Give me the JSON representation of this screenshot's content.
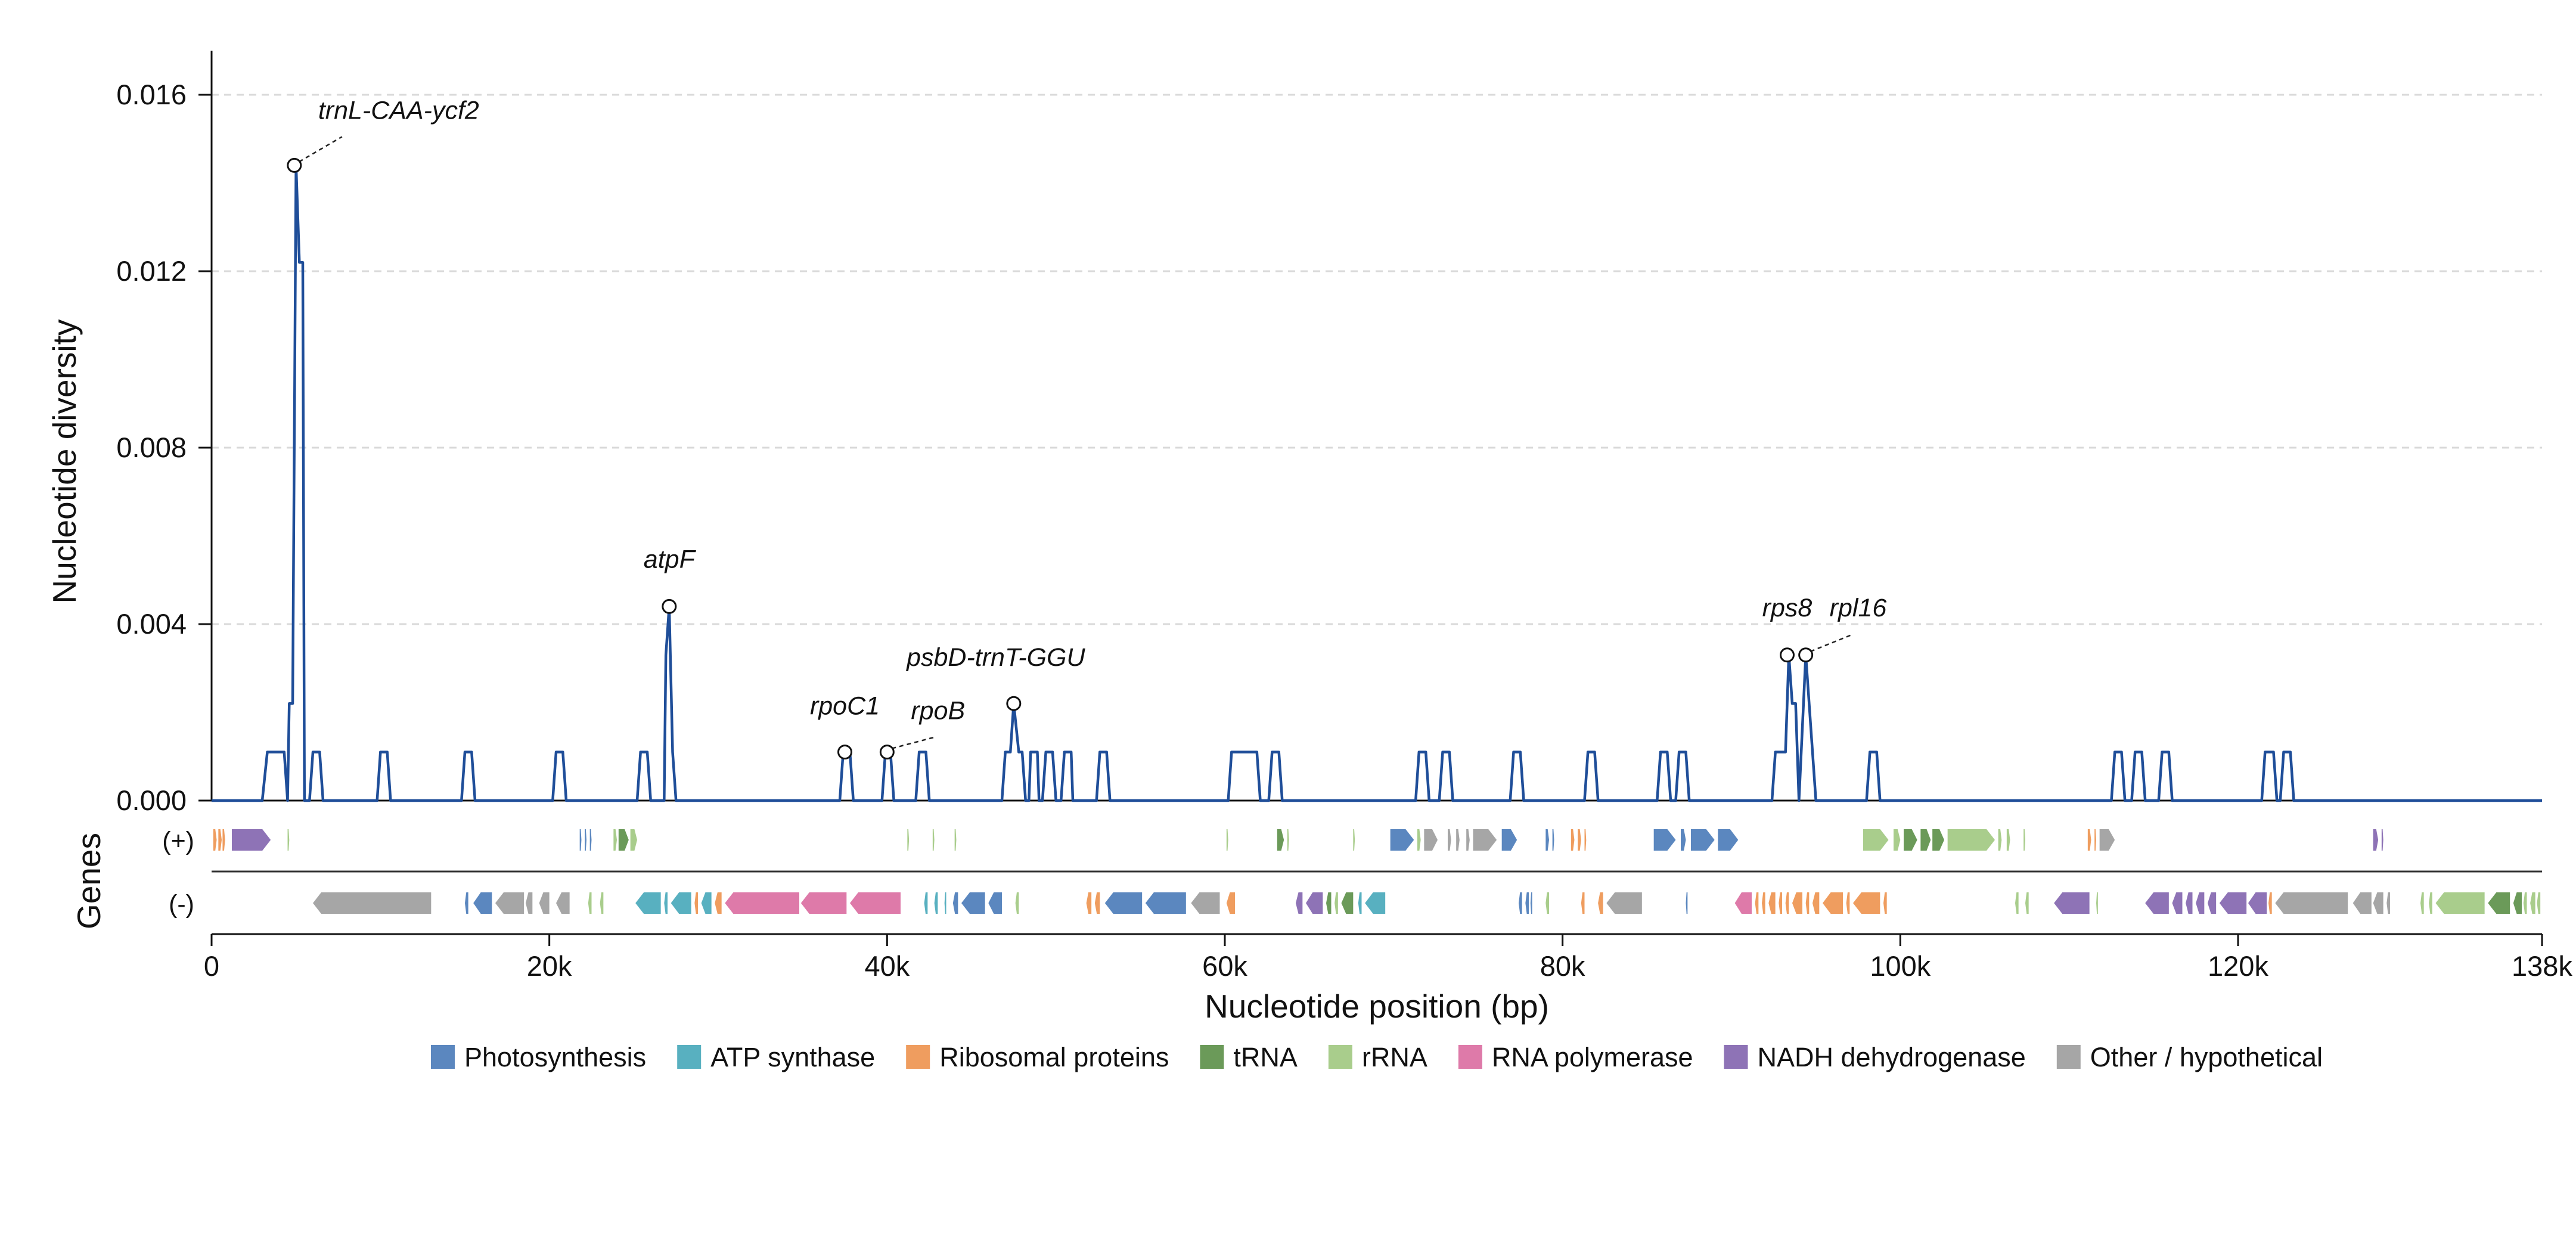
{
  "chart_data": {
    "type": "line",
    "title": "",
    "xlabel": "Nucleotide position (bp)",
    "ylabel": "Nucleotide diversity",
    "xlim": [
      0,
      138000
    ],
    "ylim": [
      0,
      0.017
    ],
    "xticks": [
      0,
      20000,
      40000,
      60000,
      80000,
      100000,
      120000,
      138000
    ],
    "xtick_labels": [
      "0",
      "20k",
      "40k",
      "60k",
      "80k",
      "100k",
      "120k",
      "138k"
    ],
    "yticks": [
      0,
      0.004,
      0.008,
      0.012,
      0.016
    ],
    "ytick_labels": [
      "0.000",
      "0.004",
      "0.008",
      "0.012",
      "0.016"
    ],
    "grid": "y-dashed",
    "series": [
      {
        "color": "#1f4e99",
        "points": [
          [
            0,
            0
          ],
          [
            3000,
            0
          ],
          [
            3300,
            0.0011
          ],
          [
            4300,
            0.0011
          ],
          [
            4500,
            0
          ],
          [
            4600,
            0.0022
          ],
          [
            4800,
            0.0022
          ],
          [
            5000,
            0.0144
          ],
          [
            5200,
            0.0122
          ],
          [
            5400,
            0.0122
          ],
          [
            5500,
            0
          ],
          [
            5800,
            0
          ],
          [
            6000,
            0.0011
          ],
          [
            6400,
            0.0011
          ],
          [
            6600,
            0
          ],
          [
            9800,
            0
          ],
          [
            10000,
            0.0011
          ],
          [
            10400,
            0.0011
          ],
          [
            10600,
            0
          ],
          [
            14800,
            0
          ],
          [
            15000,
            0.0011
          ],
          [
            15400,
            0.0011
          ],
          [
            15600,
            0
          ],
          [
            20200,
            0
          ],
          [
            20400,
            0.0011
          ],
          [
            20800,
            0.0011
          ],
          [
            21000,
            0
          ],
          [
            25200,
            0
          ],
          [
            25400,
            0.0011
          ],
          [
            25800,
            0.0011
          ],
          [
            26000,
            0
          ],
          [
            26800,
            0
          ],
          [
            26900,
            0.0033
          ],
          [
            27100,
            0.0044
          ],
          [
            27300,
            0.0011
          ],
          [
            27500,
            0
          ],
          [
            37200,
            0
          ],
          [
            37400,
            0.0011
          ],
          [
            37800,
            0.0011
          ],
          [
            38000,
            0
          ],
          [
            39700,
            0
          ],
          [
            39900,
            0.0011
          ],
          [
            40200,
            0.0011
          ],
          [
            40400,
            0
          ],
          [
            41700,
            0
          ],
          [
            41900,
            0.0011
          ],
          [
            42300,
            0.0011
          ],
          [
            42500,
            0
          ],
          [
            46800,
            0
          ],
          [
            47000,
            0.0011
          ],
          [
            47300,
            0.0011
          ],
          [
            47500,
            0.0022
          ],
          [
            47800,
            0.0011
          ],
          [
            48000,
            0.0011
          ],
          [
            48200,
            0
          ],
          [
            48400,
            0
          ],
          [
            48500,
            0.0011
          ],
          [
            48900,
            0.0011
          ],
          [
            49000,
            0
          ],
          [
            49200,
            0
          ],
          [
            49400,
            0.0011
          ],
          [
            49800,
            0.0011
          ],
          [
            50000,
            0
          ],
          [
            50300,
            0
          ],
          [
            50500,
            0.0011
          ],
          [
            50900,
            0.0011
          ],
          [
            51000,
            0
          ],
          [
            52400,
            0
          ],
          [
            52600,
            0.0011
          ],
          [
            53000,
            0.0011
          ],
          [
            53200,
            0
          ],
          [
            60200,
            0
          ],
          [
            60400,
            0.0011
          ],
          [
            61900,
            0.0011
          ],
          [
            62100,
            0
          ],
          [
            62600,
            0
          ],
          [
            62800,
            0.0011
          ],
          [
            63200,
            0.0011
          ],
          [
            63400,
            0
          ],
          [
            71300,
            0
          ],
          [
            71500,
            0.0011
          ],
          [
            71900,
            0.0011
          ],
          [
            72100,
            0
          ],
          [
            72700,
            0
          ],
          [
            72900,
            0.0011
          ],
          [
            73300,
            0.0011
          ],
          [
            73500,
            0
          ],
          [
            76900,
            0
          ],
          [
            77100,
            0.0011
          ],
          [
            77500,
            0.0011
          ],
          [
            77700,
            0
          ],
          [
            81300,
            0
          ],
          [
            81500,
            0.0011
          ],
          [
            81900,
            0.0011
          ],
          [
            82100,
            0
          ],
          [
            85600,
            0
          ],
          [
            85800,
            0.0011
          ],
          [
            86200,
            0.0011
          ],
          [
            86400,
            0
          ],
          [
            86700,
            0
          ],
          [
            86900,
            0.0011
          ],
          [
            87300,
            0.0011
          ],
          [
            87500,
            0
          ],
          [
            92400,
            0
          ],
          [
            92600,
            0.0011
          ],
          [
            93200,
            0.0011
          ],
          [
            93400,
            0.0033
          ],
          [
            93600,
            0.0022
          ],
          [
            93800,
            0.0022
          ],
          [
            94000,
            0
          ],
          [
            94400,
            0.0033
          ],
          [
            95000,
            0
          ],
          [
            98000,
            0
          ],
          [
            98200,
            0.0011
          ],
          [
            98600,
            0.0011
          ],
          [
            98800,
            0
          ],
          [
            112500,
            0
          ],
          [
            112700,
            0.0011
          ],
          [
            113100,
            0.0011
          ],
          [
            113300,
            0
          ],
          [
            113700,
            0
          ],
          [
            113900,
            0.0011
          ],
          [
            114300,
            0.0011
          ],
          [
            114500,
            0
          ],
          [
            115300,
            0
          ],
          [
            115500,
            0.0011
          ],
          [
            115900,
            0.0011
          ],
          [
            116100,
            0
          ],
          [
            121400,
            0
          ],
          [
            121600,
            0.0011
          ],
          [
            122100,
            0.0011
          ],
          [
            122300,
            0
          ],
          [
            122500,
            0
          ],
          [
            122700,
            0.0011
          ],
          [
            123100,
            0.0011
          ],
          [
            123300,
            0
          ],
          [
            138000,
            0
          ]
        ]
      }
    ],
    "annotations": [
      {
        "label": "trnL-CAA-ycf2",
        "x": 4900,
        "y": 0.0144
      },
      {
        "label": "atpF",
        "x": 27100,
        "y": 0.0044
      },
      {
        "label": "rpoC1",
        "x": 37500,
        "y": 0.0011
      },
      {
        "label": "rpoB",
        "x": 40000,
        "y": 0.0011
      },
      {
        "label": "psbD-trnT-GGU",
        "x": 47500,
        "y": 0.0022
      },
      {
        "label": "rps8",
        "x": 93300,
        "y": 0.0033
      },
      {
        "label": "rpl16",
        "x": 94400,
        "y": 0.0033
      }
    ],
    "gene_track": {
      "title": "Genes",
      "strand_labels": [
        "(+)",
        "(-)"
      ],
      "categories": [
        {
          "name": "Photosynthesis",
          "color": "#5b87bf"
        },
        {
          "name": "ATP synthase",
          "color": "#58b0c0"
        },
        {
          "name": "Ribosomal proteins",
          "color": "#ef9d5f"
        },
        {
          "name": "tRNA",
          "color": "#6b9a59"
        },
        {
          "name": "rRNA",
          "color": "#a9cd8c"
        },
        {
          "name": "RNA polymerase",
          "color": "#de7aa9"
        },
        {
          "name": "NADH dehydrogenase",
          "color": "#8e73b6"
        },
        {
          "name": "Other / hypothetical",
          "color": "#a6a6a6"
        }
      ],
      "plus": [
        [
          100,
          300,
          2
        ],
        [
          400,
          600,
          2
        ],
        [
          650,
          800,
          2
        ],
        [
          1200,
          3500,
          6
        ],
        [
          4500,
          4600,
          4
        ],
        [
          21800,
          21900,
          0
        ],
        [
          22100,
          22200,
          0
        ],
        [
          22400,
          22500,
          0
        ],
        [
          23800,
          24000,
          4
        ],
        [
          24100,
          24700,
          3
        ],
        [
          24800,
          25200,
          4
        ],
        [
          41200,
          41300,
          4
        ],
        [
          42700,
          42800,
          4
        ],
        [
          44000,
          44100,
          4
        ],
        [
          60100,
          60200,
          4
        ],
        [
          63100,
          63500,
          3
        ],
        [
          63700,
          63800,
          4
        ],
        [
          67600,
          67700,
          4
        ],
        [
          69800,
          71200,
          0
        ],
        [
          71400,
          71600,
          4
        ],
        [
          71800,
          72600,
          7
        ],
        [
          73200,
          73400,
          7
        ],
        [
          73700,
          73900,
          7
        ],
        [
          74300,
          74500,
          7
        ],
        [
          74700,
          76100,
          7
        ],
        [
          76400,
          77300,
          0
        ],
        [
          79000,
          79200,
          0
        ],
        [
          79400,
          79500,
          0
        ],
        [
          80500,
          80700,
          2
        ],
        [
          80900,
          81100,
          2
        ],
        [
          81300,
          81400,
          2
        ],
        [
          85400,
          86700,
          0
        ],
        [
          87000,
          87300,
          0
        ],
        [
          87600,
          89000,
          0
        ],
        [
          89200,
          90400,
          0
        ],
        [
          97800,
          99300,
          4
        ],
        [
          99600,
          100000,
          4
        ],
        [
          100200,
          101000,
          3
        ],
        [
          101200,
          101800,
          3
        ],
        [
          101900,
          102600,
          3
        ],
        [
          102800,
          105600,
          4
        ],
        [
          105800,
          106000,
          4
        ],
        [
          106300,
          106500,
          4
        ],
        [
          107300,
          107400,
          4
        ],
        [
          111100,
          111300,
          2
        ],
        [
          111500,
          111600,
          2
        ],
        [
          111800,
          112700,
          7
        ],
        [
          128000,
          128300,
          6
        ],
        [
          128500,
          128600,
          6
        ]
      ],
      "minus": [
        [
          6000,
          13000,
          7
        ],
        [
          15000,
          15200,
          0
        ],
        [
          15500,
          16600,
          0
        ],
        [
          16800,
          18500,
          7
        ],
        [
          18600,
          19000,
          7
        ],
        [
          19400,
          20000,
          7
        ],
        [
          20400,
          21200,
          7
        ],
        [
          22300,
          22500,
          4
        ],
        [
          23000,
          23200,
          4
        ],
        [
          25100,
          26600,
          1
        ],
        [
          26800,
          27000,
          1
        ],
        [
          27200,
          28400,
          1
        ],
        [
          28600,
          28800,
          2
        ],
        [
          29000,
          29600,
          1
        ],
        [
          29800,
          30200,
          2
        ],
        [
          30400,
          34800,
          5
        ],
        [
          34900,
          37600,
          5
        ],
        [
          37800,
          40800,
          5
        ],
        [
          42200,
          42400,
          1
        ],
        [
          42800,
          43000,
          1
        ],
        [
          43400,
          43500,
          1
        ],
        [
          43900,
          44200,
          0
        ],
        [
          44400,
          45800,
          0
        ],
        [
          46000,
          46800,
          0
        ],
        [
          47600,
          47800,
          4
        ],
        [
          51800,
          52100,
          2
        ],
        [
          52300,
          52600,
          2
        ],
        [
          52900,
          55100,
          0
        ],
        [
          55300,
          57700,
          0
        ],
        [
          58000,
          59700,
          7
        ],
        [
          60100,
          60600,
          2
        ],
        [
          64200,
          64600,
          6
        ],
        [
          64800,
          65800,
          6
        ],
        [
          66000,
          66300,
          3
        ],
        [
          66500,
          66700,
          4
        ],
        [
          66900,
          67600,
          3
        ],
        [
          67900,
          68100,
          1
        ],
        [
          68300,
          69500,
          1
        ],
        [
          77400,
          77600,
          0
        ],
        [
          77800,
          78000,
          0
        ],
        [
          78100,
          78200,
          0
        ],
        [
          79000,
          79200,
          4
        ],
        [
          81100,
          81300,
          2
        ],
        [
          82100,
          82400,
          2
        ],
        [
          82600,
          84700,
          7
        ],
        [
          87300,
          87400,
          0
        ],
        [
          90200,
          91200,
          5
        ],
        [
          91400,
          91600,
          2
        ],
        [
          91800,
          92000,
          2
        ],
        [
          92200,
          92600,
          2
        ],
        [
          92800,
          93000,
          2
        ],
        [
          93200,
          93400,
          2
        ],
        [
          93600,
          94200,
          2
        ],
        [
          94400,
          94600,
          2
        ],
        [
          94800,
          95200,
          2
        ],
        [
          95400,
          96600,
          2
        ],
        [
          96800,
          97000,
          2
        ],
        [
          97200,
          98800,
          2
        ],
        [
          99000,
          99200,
          2
        ],
        [
          106800,
          107000,
          4
        ],
        [
          107400,
          107600,
          4
        ],
        [
          109100,
          111200,
          6
        ],
        [
          111600,
          111700,
          4
        ],
        [
          114500,
          115900,
          6
        ],
        [
          116100,
          116700,
          6
        ],
        [
          116900,
          117300,
          6
        ],
        [
          117500,
          118000,
          6
        ],
        [
          118200,
          118700,
          6
        ],
        [
          118900,
          120500,
          6
        ],
        [
          120600,
          121700,
          6
        ],
        [
          121800,
          122000,
          2
        ],
        [
          122200,
          126500,
          7
        ],
        [
          126800,
          127900,
          7
        ],
        [
          128000,
          128600,
          7
        ],
        [
          128800,
          129000,
          7
        ],
        [
          130800,
          131000,
          4
        ],
        [
          131300,
          131500,
          4
        ],
        [
          131700,
          134600,
          4
        ],
        [
          134800,
          136100,
          3
        ],
        [
          136300,
          136800,
          3
        ],
        [
          136900,
          137100,
          4
        ],
        [
          137300,
          137600,
          4
        ],
        [
          137700,
          137900,
          4
        ]
      ]
    }
  }
}
